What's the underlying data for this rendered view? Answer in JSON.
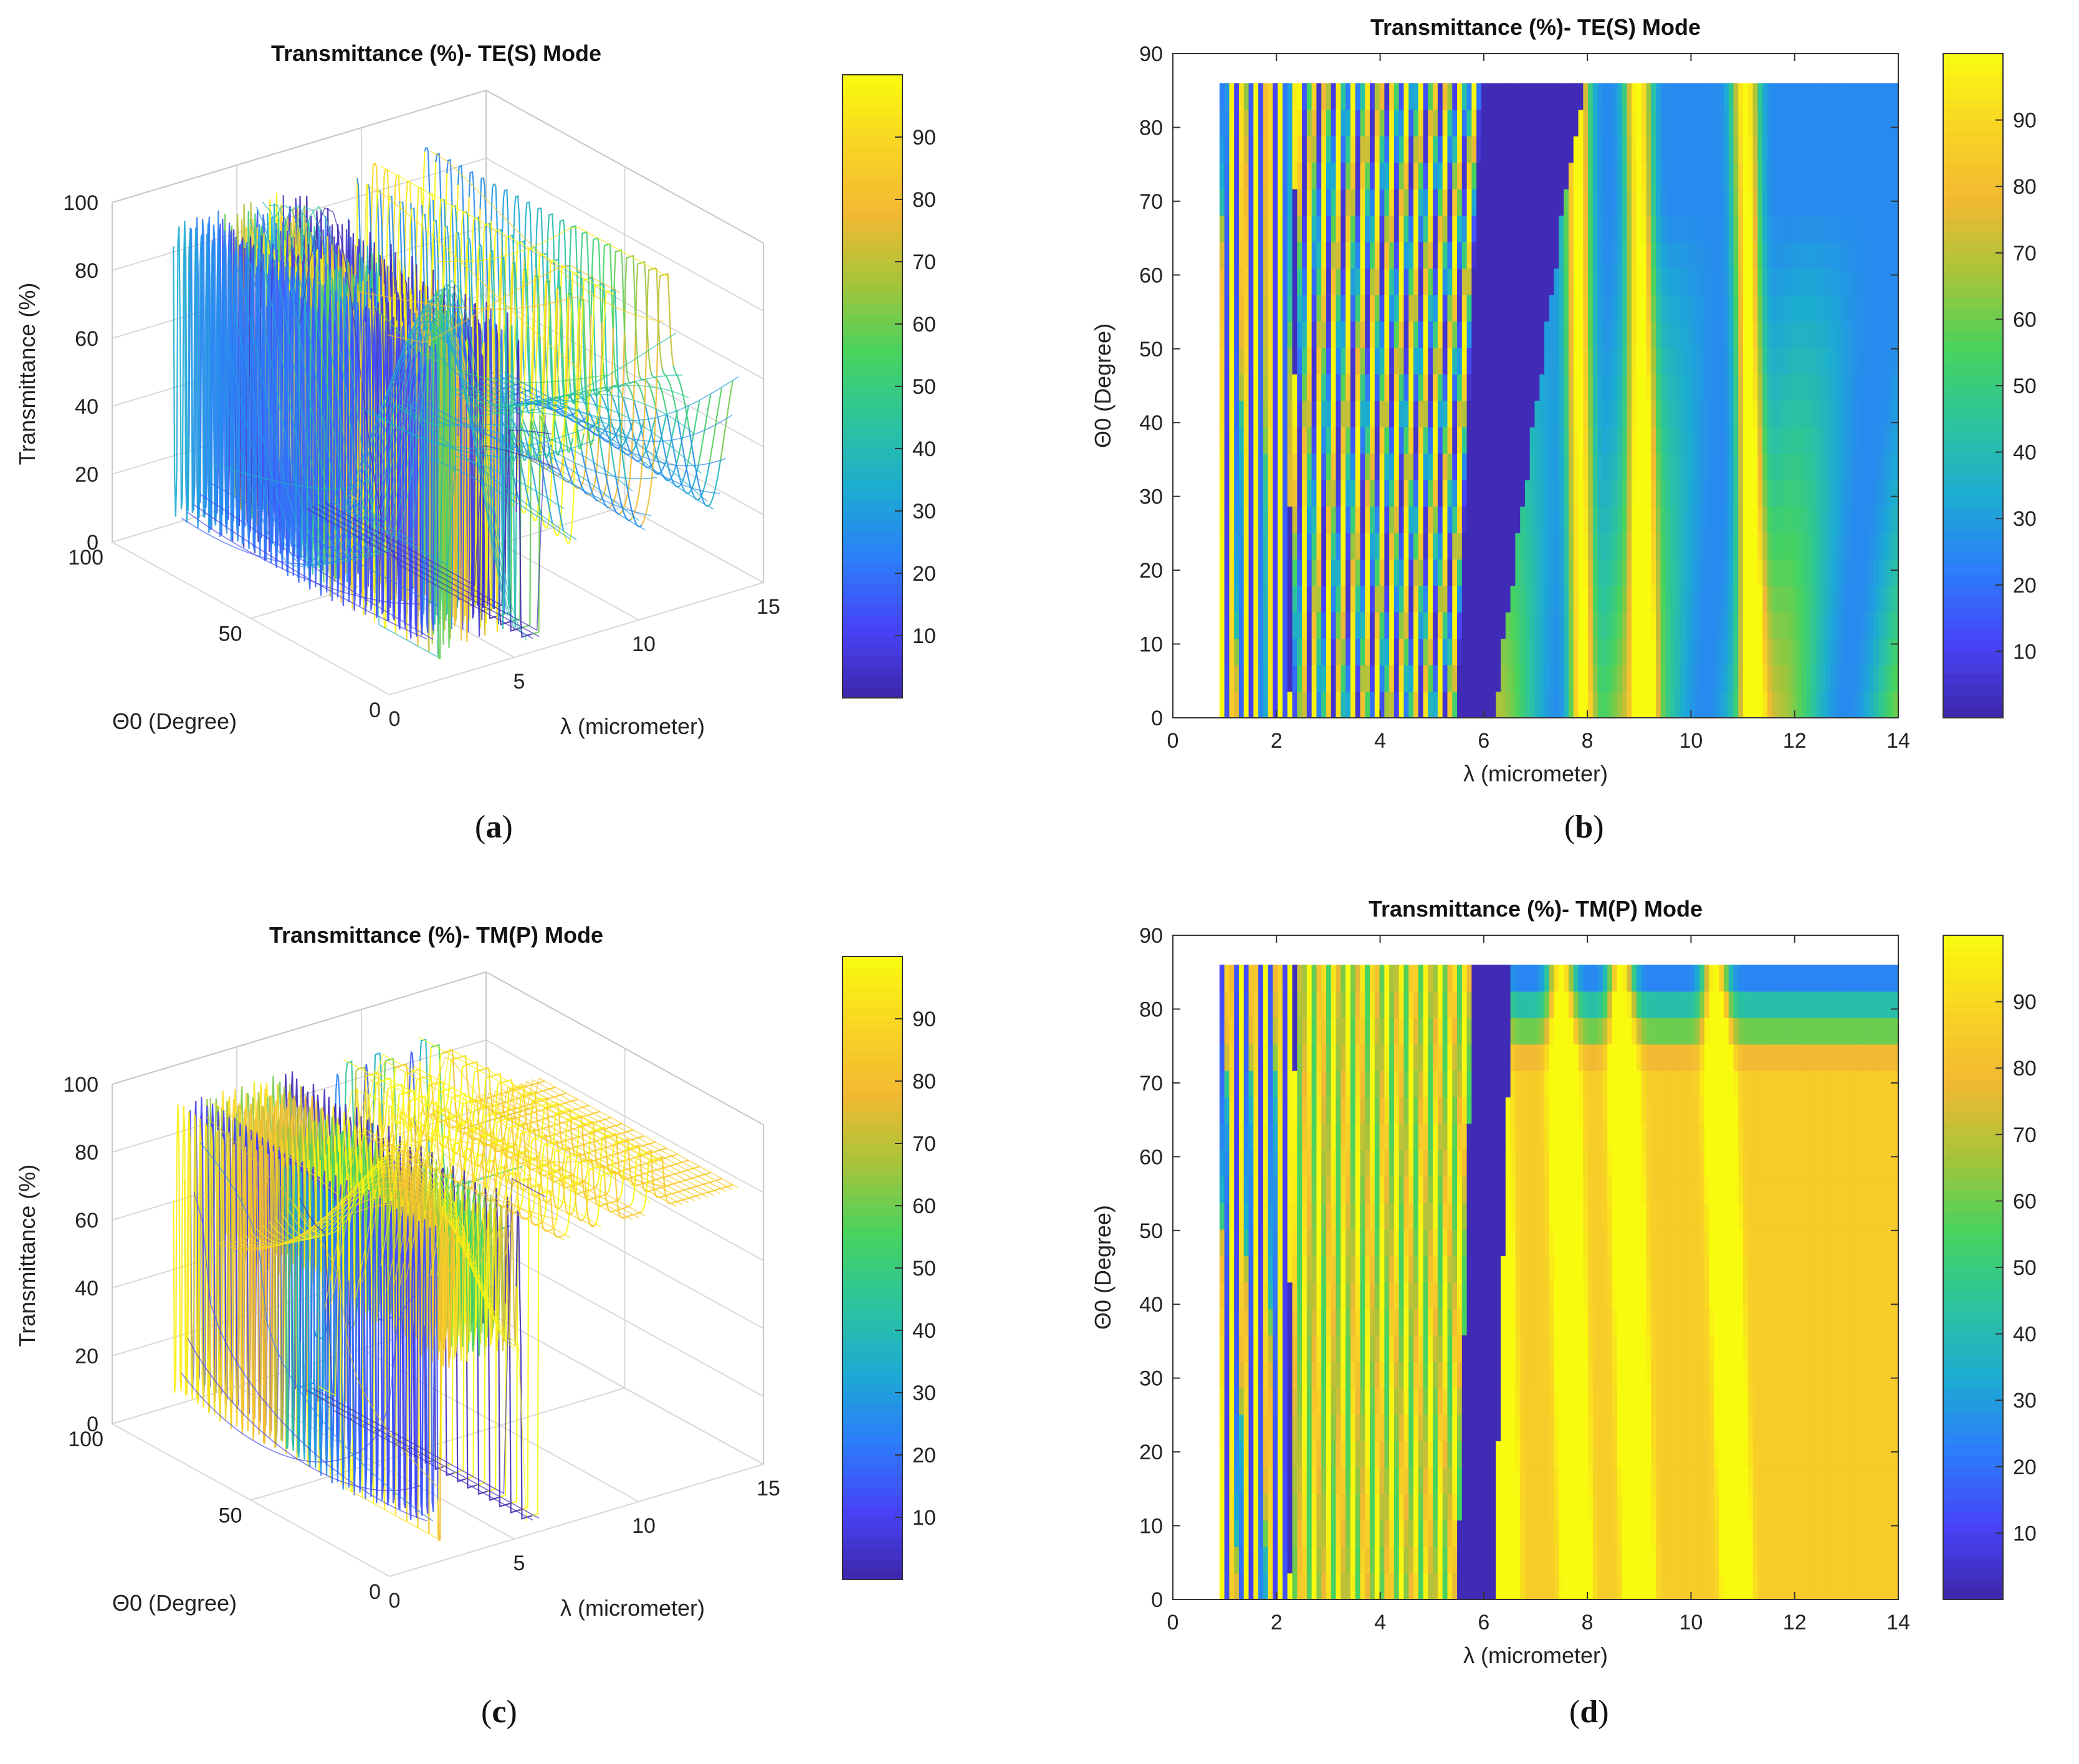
{
  "chart_data": [
    {
      "id": "a",
      "type": "surface3d",
      "title": "Transmittance (%)- TE(S) Mode",
      "xlabel": "λ (micrometer)",
      "ylabel": "Θ0 (Degree)",
      "zlabel": "Transmittance (%)",
      "x_ticks": [
        "0",
        "5",
        "10",
        "15"
      ],
      "y_ticks": [
        "0",
        "50",
        "100"
      ],
      "z_ticks": [
        "0",
        "20",
        "40",
        "60",
        "80",
        "100"
      ],
      "xlim": [
        0,
        15
      ],
      "ylim": [
        0,
        100
      ],
      "zlim": [
        0,
        100
      ],
      "colorbar_ticks": [
        "10",
        "20",
        "30",
        "40",
        "50",
        "60",
        "70",
        "80",
        "90"
      ],
      "colorbar_range": [
        0,
        100
      ],
      "caption": "a"
    },
    {
      "id": "b",
      "type": "heatmap",
      "title": "Transmittance (%)- TE(S) Mode",
      "xlabel": "λ (micrometer)",
      "ylabel": "Θ0 (Degree)",
      "x_ticks": [
        "0",
        "2",
        "4",
        "6",
        "8",
        "10",
        "12",
        "14"
      ],
      "y_ticks": [
        "0",
        "10",
        "20",
        "30",
        "40",
        "50",
        "60",
        "70",
        "80",
        "90"
      ],
      "xlim": [
        0,
        14
      ],
      "ylim": [
        0,
        90
      ],
      "data_extent": {
        "lambda": [
          0.9,
          14
        ],
        "theta": [
          0,
          86
        ]
      },
      "colorbar_ticks": [
        "10",
        "20",
        "30",
        "40",
        "50",
        "60",
        "70",
        "80",
        "90"
      ],
      "colorbar_range": [
        0,
        100
      ],
      "caption": "b"
    },
    {
      "id": "c",
      "type": "surface3d",
      "title": "Transmittance (%)- TM(P) Mode",
      "xlabel": "λ (micrometer)",
      "ylabel": "Θ0 (Degree)",
      "zlabel": "Transmittance (%)",
      "x_ticks": [
        "0",
        "5",
        "10",
        "15"
      ],
      "y_ticks": [
        "0",
        "50",
        "100"
      ],
      "z_ticks": [
        "0",
        "20",
        "40",
        "60",
        "80",
        "100"
      ],
      "xlim": [
        0,
        15
      ],
      "ylim": [
        0,
        100
      ],
      "zlim": [
        0,
        100
      ],
      "colorbar_ticks": [
        "10",
        "20",
        "30",
        "40",
        "50",
        "60",
        "70",
        "80",
        "90"
      ],
      "colorbar_range": [
        0,
        100
      ],
      "caption": "c"
    },
    {
      "id": "d",
      "type": "heatmap",
      "title": "Transmittance (%)- TM(P) Mode",
      "xlabel": "λ (micrometer)",
      "ylabel": "Θ0 (Degree)",
      "x_ticks": [
        "0",
        "2",
        "4",
        "6",
        "8",
        "10",
        "12",
        "14"
      ],
      "y_ticks": [
        "0",
        "10",
        "20",
        "30",
        "40",
        "50",
        "60",
        "70",
        "80",
        "90"
      ],
      "xlim": [
        0,
        14
      ],
      "ylim": [
        0,
        90
      ],
      "data_extent": {
        "lambda": [
          0.9,
          14
        ],
        "theta": [
          0,
          86
        ]
      },
      "colorbar_ticks": [
        "10",
        "20",
        "30",
        "40",
        "50",
        "60",
        "70",
        "80",
        "90"
      ],
      "colorbar_range": [
        0,
        100
      ],
      "caption": "d"
    }
  ],
  "colormap": [
    "#3e26a8",
    "#4743f8",
    "#2c7dfa",
    "#1cabd3",
    "#2cc49d",
    "#47d35e",
    "#a6c43a",
    "#f2b933",
    "#f9d425",
    "#f9fb0e"
  ]
}
